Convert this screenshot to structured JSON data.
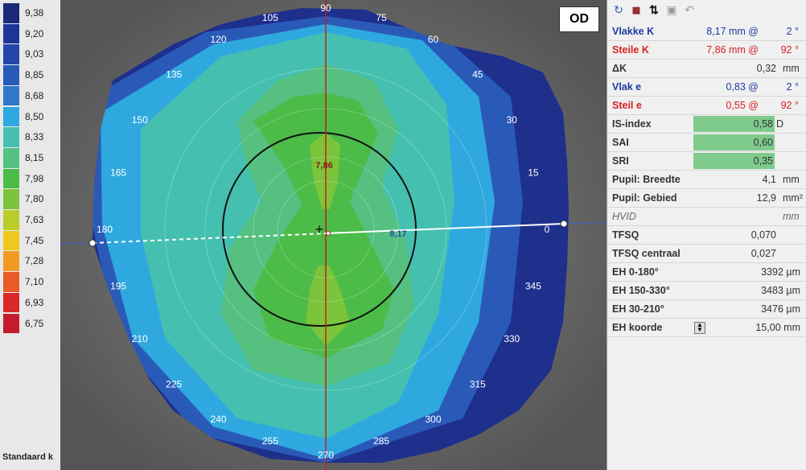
{
  "scale": {
    "values": [
      "9,38",
      "9,20",
      "9,03",
      "8,85",
      "8,68",
      "8,50",
      "8,33",
      "8,15",
      "7,98",
      "7,80",
      "7,63",
      "7,45",
      "7,28",
      "7,10",
      "6,93",
      "6,75"
    ],
    "colors": [
      "#1a2a78",
      "#1f3596",
      "#2446aa",
      "#2a5ab8",
      "#2f78c8",
      "#2fa8e0",
      "#45c0b0",
      "#55c080",
      "#4cbb48",
      "#7cc43a",
      "#b8cc2a",
      "#f0c81e",
      "#f09a24",
      "#e85a28",
      "#d82828",
      "#c41c2c"
    ],
    "footer": "Standaard k"
  },
  "map": {
    "eye_label": "OD",
    "angles": [
      "90",
      "75",
      "60",
      "45",
      "30",
      "15",
      "0",
      "345",
      "330",
      "315",
      "300",
      "285",
      "270",
      "255",
      "240",
      "225",
      "210",
      "195",
      "180",
      "165",
      "150",
      "135",
      "120",
      "105"
    ],
    "steep_value": "7,86",
    "flat_value": "8,17"
  },
  "toolbar": {
    "icons": [
      "refresh-icon",
      "calendar-icon",
      "sort-icon",
      "save-icon",
      "undo-icon"
    ]
  },
  "panel": {
    "vlakke_k": {
      "label": "Vlakke K",
      "value": "8,17 mm @",
      "angle": "2 °"
    },
    "steile_k": {
      "label": "Steile K",
      "value": "7,86 mm @",
      "angle": "92 °"
    },
    "delta_k": {
      "label": "ΔK",
      "value": "0,32",
      "unit": "mm"
    },
    "vlak_e": {
      "label": "Vlak e",
      "value": "0,83 @",
      "angle": "2 °"
    },
    "steil_e": {
      "label": "Steil e",
      "value": "0,55 @",
      "angle": "92 °"
    },
    "is_index": {
      "label": "IS-index",
      "value": "0,58",
      "unit": "D"
    },
    "sai": {
      "label": "SAI",
      "value": "0,60"
    },
    "sri": {
      "label": "SRI",
      "value": "0,35"
    },
    "pupil_breedte": {
      "label": "Pupil: Breedte",
      "value": "4,1",
      "unit": "mm"
    },
    "pupil_gebied": {
      "label": "Pupil: Gebied",
      "value": "12,9",
      "unit": "mm²"
    },
    "hvid": {
      "label": "HVID",
      "value": "",
      "unit": "mm"
    },
    "tfsq": {
      "label": "TFSQ",
      "value": "0,070"
    },
    "tfsq_centraal": {
      "label": "TFSQ centraal",
      "value": "0,027"
    },
    "eh_0_180": {
      "label": "EH 0-180°",
      "value": "3392 µm"
    },
    "eh_150_330": {
      "label": "EH 150-330°",
      "value": "3483 µm"
    },
    "eh_30_210": {
      "label": "EH 30-210°",
      "value": "3476 µm"
    },
    "eh_koorde": {
      "label": "EH koorde",
      "value": "15,00 mm"
    }
  }
}
